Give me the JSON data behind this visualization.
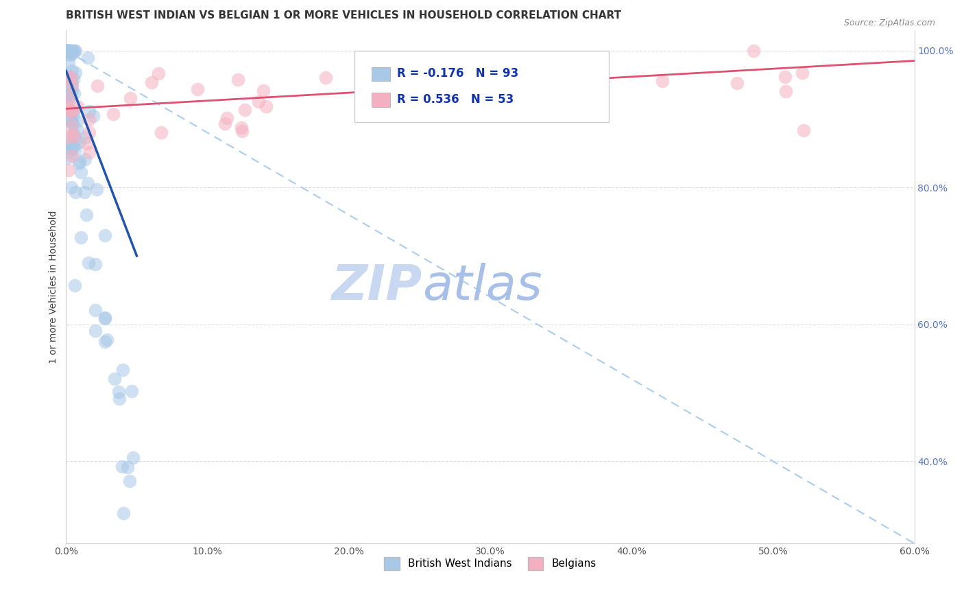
{
  "title": "BRITISH WEST INDIAN VS BELGIAN 1 OR MORE VEHICLES IN HOUSEHOLD CORRELATION CHART",
  "source": "Source: ZipAtlas.com",
  "ylabel_label": "1 or more Vehicles in Household",
  "legend_labels": [
    "British West Indians",
    "Belgians"
  ],
  "blue_color": "#a8c8e8",
  "pink_color": "#f4b0c0",
  "blue_line_color": "#2255aa",
  "pink_line_color": "#e05070",
  "diag_color": "#aaccee",
  "R_blue": -0.176,
  "N_blue": 93,
  "R_pink": 0.536,
  "N_pink": 53,
  "xmin": 0,
  "xmax": 60,
  "ymin": 28,
  "ymax": 103,
  "y_ticks": [
    40,
    60,
    80,
    100
  ],
  "x_ticks": [
    0,
    10,
    20,
    30,
    40,
    50,
    60
  ],
  "title_fontsize": 11,
  "tick_fontsize": 10,
  "ylabel_color": "#5577cc",
  "watermark_color": "#ccddf5",
  "watermark_zip_color": "#c8d8f0",
  "watermark_atlas_color": "#a8c0e8",
  "info_box_text_color": "#2244aa",
  "info_box_R_color": "#1133aa"
}
